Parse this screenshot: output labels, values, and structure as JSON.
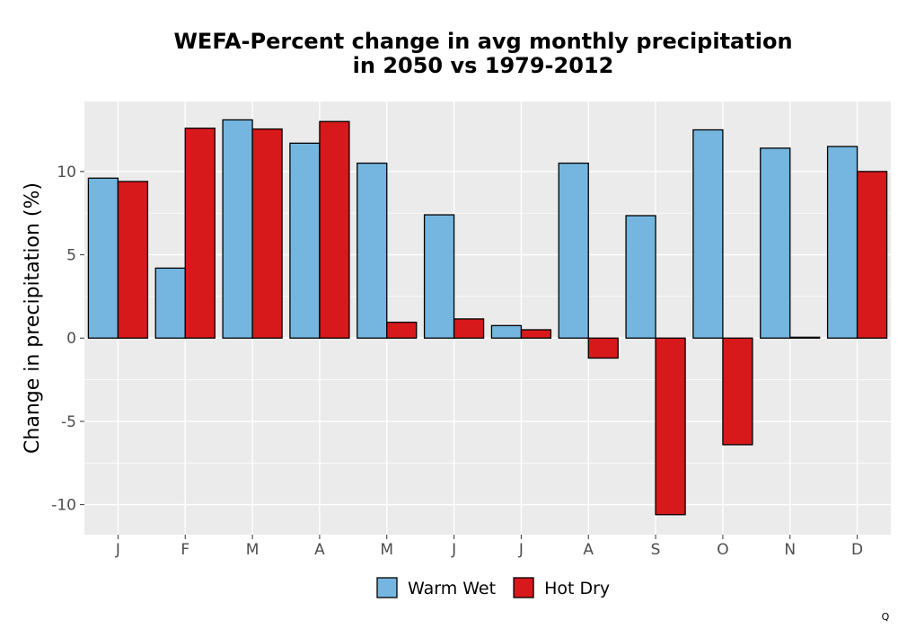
{
  "chart_data": {
    "type": "bar",
    "title": "WEFA-Percent change in avg monthly precipitation",
    "subtitle": "in 2050 vs 1979-2012",
    "ylabel": "Change in precipitation (%)",
    "xlabel": "",
    "ylim": [
      -11.8,
      14.2
    ],
    "yticks": [
      -10,
      -5,
      0,
      5,
      10
    ],
    "ytick_labels": [
      "-10",
      "-5",
      "0",
      "5",
      "10"
    ],
    "categories": [
      "J",
      "F",
      "M",
      "A",
      "M",
      "J",
      "J",
      "A",
      "S",
      "O",
      "N",
      "D"
    ],
    "series": [
      {
        "name": "Warm Wet",
        "color": "#74b6e0",
        "values": [
          9.6,
          4.2,
          13.1,
          11.7,
          10.5,
          7.4,
          0.75,
          10.5,
          7.35,
          12.5,
          11.4,
          11.5
        ]
      },
      {
        "name": "Hot Dry",
        "color": "#d7191c",
        "values": [
          9.4,
          12.6,
          12.55,
          13.0,
          0.95,
          1.15,
          0.5,
          -1.2,
          -10.6,
          -6.4,
          0.05,
          10.0
        ]
      }
    ],
    "grid": true,
    "legend_position": "bottom",
    "panel_background": "#ebebeb",
    "bar_outline": "#000000"
  },
  "footer": {
    "mark": "Q"
  }
}
